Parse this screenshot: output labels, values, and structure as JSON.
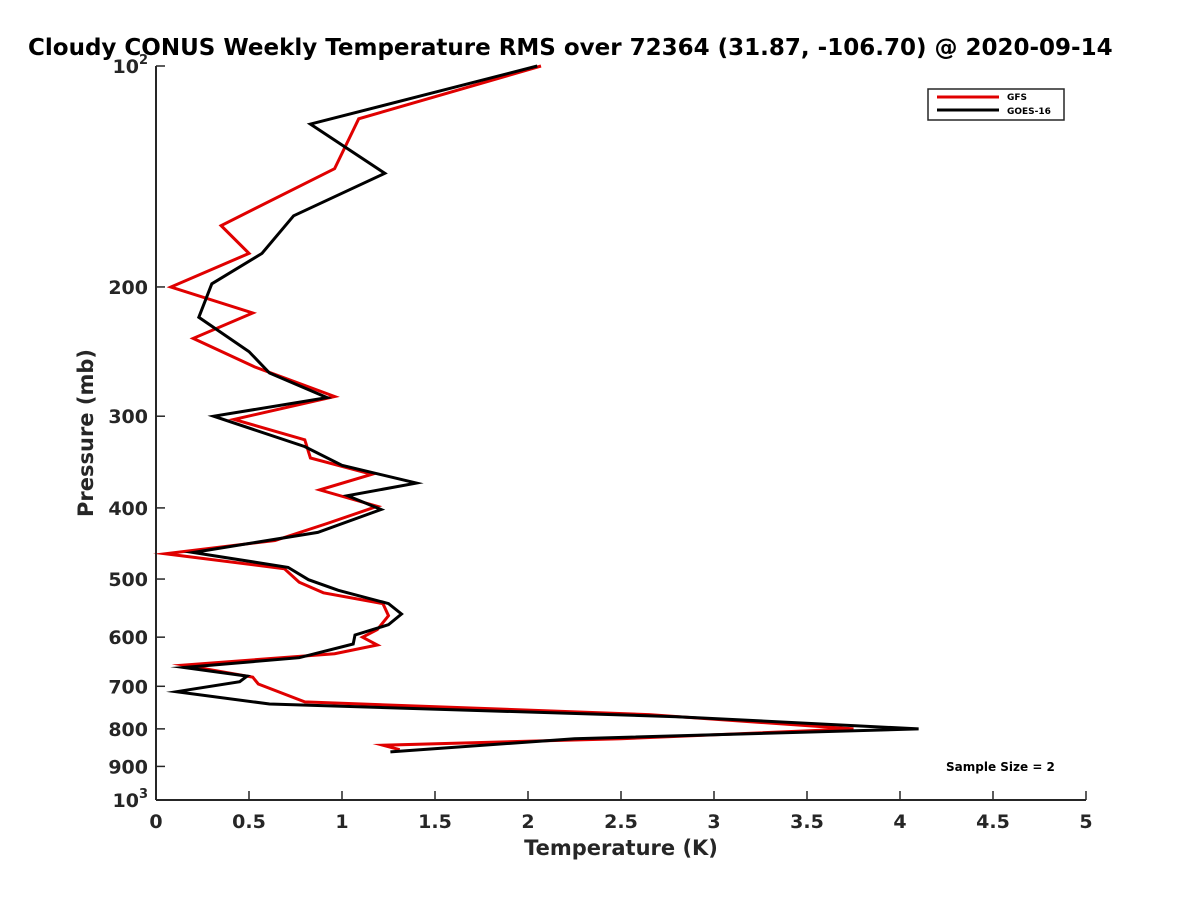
{
  "chart_data": {
    "type": "line",
    "title": "Cloudy CONUS Weekly Temperature RMS over 72364 (31.87, -106.70) @ 2020-09-14",
    "xlabel": "Temperature (K)",
    "ylabel": "Pressure (mb)",
    "xlim": [
      0,
      5
    ],
    "ylim": [
      100,
      1000
    ],
    "y_scale": "log",
    "y_reversed": true,
    "grid": false,
    "legend_position": "top-right",
    "xticks": [
      {
        "value": 0,
        "label": "0"
      },
      {
        "value": 0.5,
        "label": "0.5"
      },
      {
        "value": 1,
        "label": "1"
      },
      {
        "value": 1.5,
        "label": "1.5"
      },
      {
        "value": 2,
        "label": "2"
      },
      {
        "value": 2.5,
        "label": "2.5"
      },
      {
        "value": 3,
        "label": "3"
      },
      {
        "value": 3.5,
        "label": "3.5"
      },
      {
        "value": 4,
        "label": "4"
      },
      {
        "value": 4.5,
        "label": "4.5"
      },
      {
        "value": 5,
        "label": "5"
      }
    ],
    "yticks": [
      {
        "value": 100,
        "base": "10",
        "exp": "2"
      },
      {
        "value": 200,
        "label": "200"
      },
      {
        "value": 300,
        "label": "300"
      },
      {
        "value": 400,
        "label": "400"
      },
      {
        "value": 500,
        "label": "500"
      },
      {
        "value": 600,
        "label": "600"
      },
      {
        "value": 700,
        "label": "700"
      },
      {
        "value": 800,
        "label": "800"
      },
      {
        "value": 900,
        "label": "900"
      },
      {
        "value": 1000,
        "base": "10",
        "exp": "3"
      }
    ],
    "annotation": "Sample Size = 2",
    "series": [
      {
        "name": "GFS",
        "color": "#e00000",
        "points": [
          [
            2.07,
            100
          ],
          [
            1.09,
            118
          ],
          [
            0.96,
            138
          ],
          [
            0.35,
            165
          ],
          [
            0.5,
            180
          ],
          [
            0.08,
            200
          ],
          [
            0.52,
            217
          ],
          [
            0.2,
            235
          ],
          [
            0.53,
            257
          ],
          [
            0.96,
            282
          ],
          [
            0.42,
            303
          ],
          [
            0.8,
            323
          ],
          [
            0.83,
            342
          ],
          [
            1.16,
            360
          ],
          [
            0.88,
            378
          ],
          [
            1.19,
            398
          ],
          [
            0.92,
            420
          ],
          [
            0.64,
            443
          ],
          [
            0.05,
            462
          ],
          [
            0.69,
            484
          ],
          [
            0.77,
            505
          ],
          [
            0.9,
            522
          ],
          [
            1.22,
            540
          ],
          [
            1.25,
            561
          ],
          [
            1.19,
            586
          ],
          [
            1.11,
            600
          ],
          [
            1.19,
            615
          ],
          [
            0.96,
            632
          ],
          [
            0.15,
            655
          ],
          [
            0.52,
            680
          ],
          [
            0.55,
            695
          ],
          [
            0.8,
            735
          ],
          [
            2.65,
            765
          ],
          [
            3.75,
            800
          ],
          [
            2.5,
            825
          ],
          [
            1.22,
            842
          ],
          [
            1.31,
            854
          ]
        ]
      },
      {
        "name": "GOES-16",
        "color": "#000000",
        "points": [
          [
            2.05,
            100
          ],
          [
            0.83,
            120
          ],
          [
            1.23,
            140
          ],
          [
            0.74,
            160
          ],
          [
            0.57,
            180
          ],
          [
            0.3,
            198
          ],
          [
            0.23,
            220
          ],
          [
            0.5,
            245
          ],
          [
            0.61,
            262
          ],
          [
            0.92,
            283
          ],
          [
            0.31,
            300
          ],
          [
            0.8,
            330
          ],
          [
            1.0,
            350
          ],
          [
            1.4,
            370
          ],
          [
            1.03,
            385
          ],
          [
            1.21,
            402
          ],
          [
            0.87,
            432
          ],
          [
            0.2,
            460
          ],
          [
            0.71,
            482
          ],
          [
            0.82,
            501
          ],
          [
            0.98,
            518
          ],
          [
            1.25,
            540
          ],
          [
            1.32,
            558
          ],
          [
            1.25,
            577
          ],
          [
            1.07,
            596
          ],
          [
            1.06,
            613
          ],
          [
            0.77,
            640
          ],
          [
            0.15,
            660
          ],
          [
            0.49,
            678
          ],
          [
            0.45,
            690
          ],
          [
            0.11,
            712
          ],
          [
            0.61,
            740
          ],
          [
            2.8,
            770
          ],
          [
            4.1,
            800
          ],
          [
            2.25,
            825
          ],
          [
            1.26,
            860
          ]
        ]
      }
    ]
  }
}
